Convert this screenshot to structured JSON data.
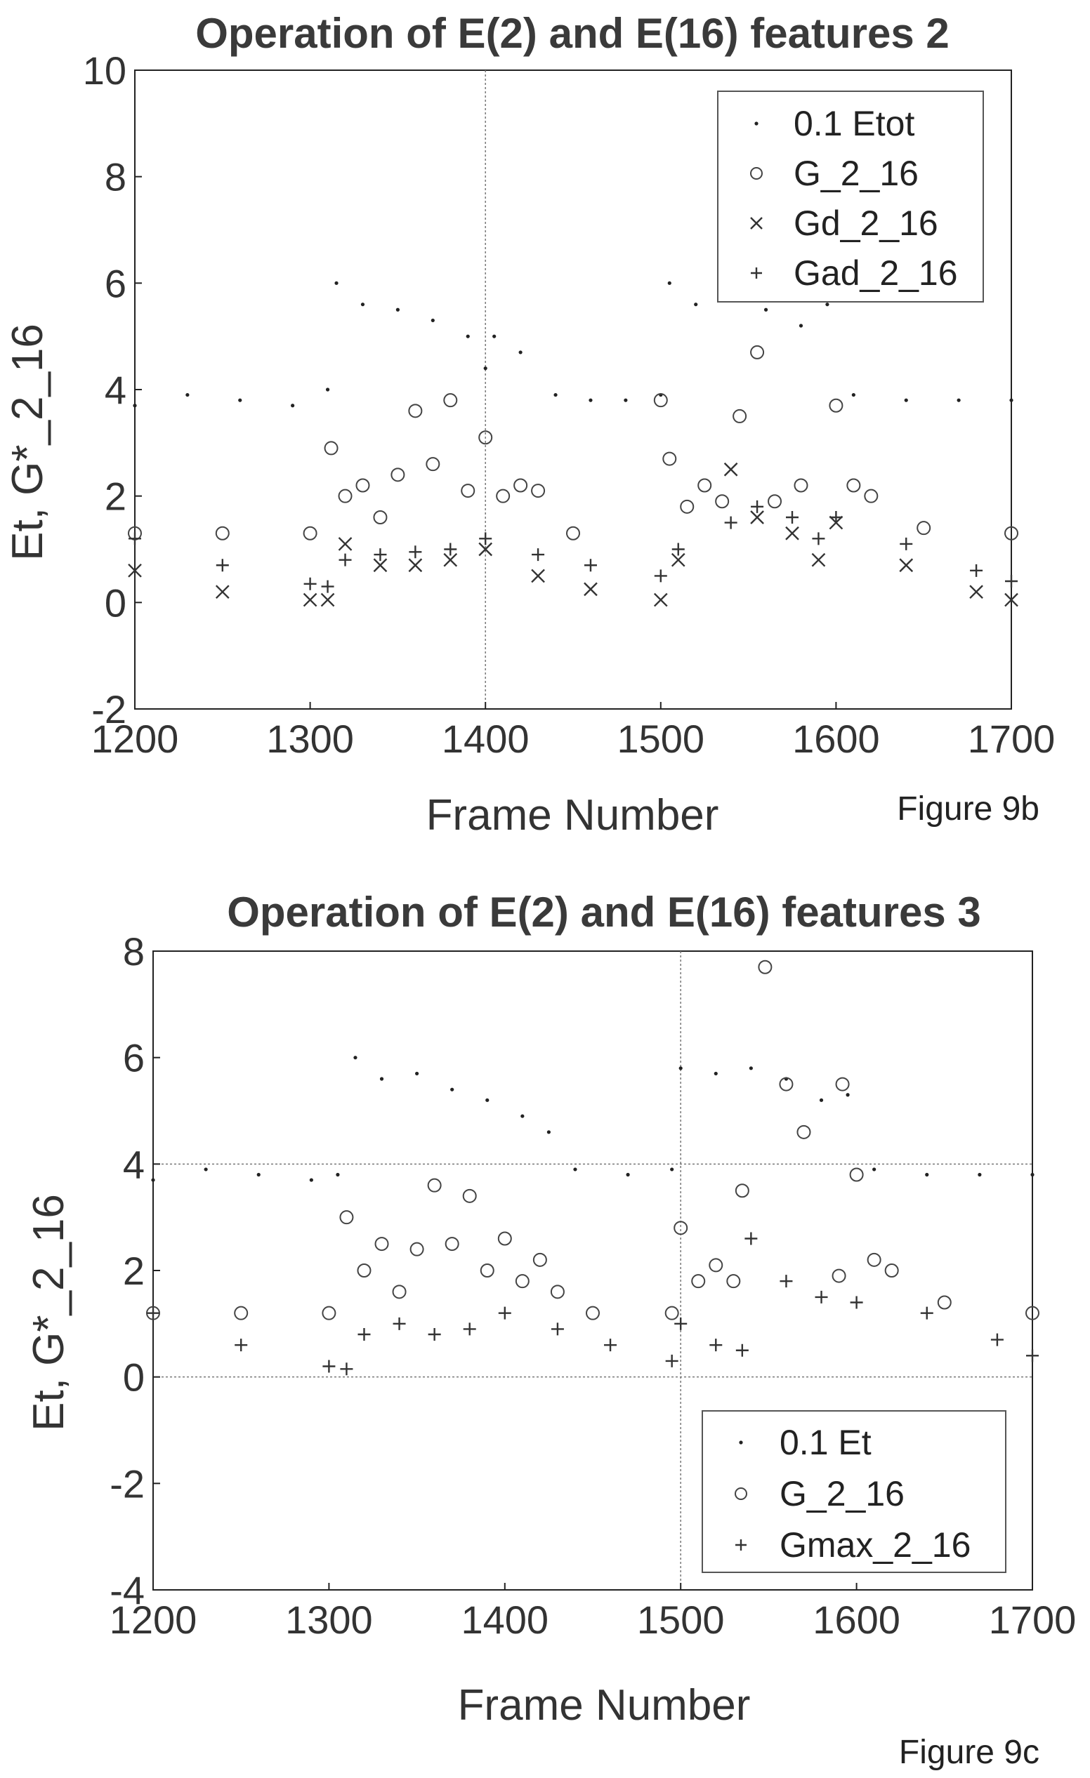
{
  "chart_data": [
    {
      "type": "scatter",
      "title": "Operation of E(2) and E(16) features 2",
      "xlabel": "Frame Number",
      "ylabel": "Et, G*_2_16",
      "caption": "Figure 9b",
      "xlim": [
        1200,
        1700
      ],
      "ylim": [
        -2,
        10
      ],
      "xticks": [
        "1200",
        "1300",
        "1400",
        "1500",
        "1600",
        "1700"
      ],
      "yticks": [
        "-2",
        "0",
        "2",
        "4",
        "6",
        "8",
        "10"
      ],
      "grid": "vertical line at 1400",
      "legend_position": "top-right",
      "legend": [
        "0.1 Etot",
        "G_2_16",
        "Gd_2_16",
        "Gad_2_16"
      ],
      "series": [
        {
          "name": "0.1 Etot",
          "marker": "dot",
          "x": [
            1200,
            1230,
            1260,
            1290,
            1310,
            1315,
            1330,
            1350,
            1370,
            1390,
            1400,
            1405,
            1420,
            1440,
            1460,
            1480,
            1500,
            1505,
            1520,
            1540,
            1560,
            1580,
            1595,
            1610,
            1640,
            1670,
            1700
          ],
          "y": [
            3.7,
            3.9,
            3.8,
            3.7,
            4.0,
            6.0,
            5.6,
            5.5,
            5.3,
            5.0,
            4.4,
            5.0,
            4.7,
            3.9,
            3.8,
            3.8,
            3.9,
            6.0,
            5.6,
            5.8,
            5.5,
            5.2,
            5.6,
            3.9,
            3.8,
            3.8,
            3.8
          ]
        },
        {
          "name": "G_2_16",
          "marker": "circle",
          "x": [
            1200,
            1250,
            1300,
            1312,
            1320,
            1330,
            1340,
            1350,
            1360,
            1370,
            1380,
            1390,
            1400,
            1410,
            1420,
            1430,
            1450,
            1500,
            1505,
            1515,
            1525,
            1535,
            1545,
            1555,
            1565,
            1580,
            1592,
            1600,
            1610,
            1620,
            1650,
            1700
          ],
          "y": [
            1.3,
            1.3,
            1.3,
            2.9,
            2.0,
            2.2,
            1.6,
            2.4,
            3.6,
            2.6,
            3.8,
            2.1,
            3.1,
            2.0,
            2.2,
            2.1,
            1.3,
            3.8,
            2.7,
            1.8,
            2.2,
            1.9,
            3.5,
            4.7,
            1.9,
            2.2,
            5.8,
            3.7,
            2.2,
            2.0,
            1.4,
            1.3
          ]
        },
        {
          "name": "Gd_2_16",
          "marker": "x",
          "x": [
            1200,
            1250,
            1300,
            1310,
            1320,
            1340,
            1360,
            1380,
            1400,
            1430,
            1460,
            1500,
            1510,
            1540,
            1555,
            1575,
            1590,
            1600,
            1640,
            1680,
            1700
          ],
          "y": [
            0.6,
            0.2,
            0.05,
            0.05,
            1.1,
            0.7,
            0.7,
            0.8,
            1.0,
            0.5,
            0.25,
            0.05,
            0.8,
            2.5,
            1.6,
            1.3,
            0.8,
            1.5,
            0.7,
            0.2,
            0.05
          ]
        },
        {
          "name": "Gad_2_16",
          "marker": "plus",
          "x": [
            1200,
            1250,
            1300,
            1310,
            1320,
            1340,
            1360,
            1380,
            1400,
            1430,
            1460,
            1500,
            1510,
            1540,
            1555,
            1575,
            1590,
            1600,
            1640,
            1680,
            1700
          ],
          "y": [
            1.2,
            0.7,
            0.35,
            0.3,
            0.8,
            0.9,
            0.95,
            1.0,
            1.2,
            0.9,
            0.7,
            0.5,
            1.0,
            1.5,
            1.8,
            1.6,
            1.2,
            1.6,
            1.1,
            0.6,
            0.4
          ]
        }
      ]
    },
    {
      "type": "scatter",
      "title": "Operation of E(2) and E(16) features 3",
      "xlabel": "Frame Number",
      "ylabel": "Et, G*_2_16",
      "caption": "Figure 9c",
      "xlim": [
        1200,
        1700
      ],
      "ylim": [
        -4,
        8
      ],
      "xticks": [
        "1200",
        "1300",
        "1400",
        "1500",
        "1600",
        "1700"
      ],
      "yticks": [
        "-4",
        "-2",
        "0",
        "2",
        "4",
        "6",
        "8"
      ],
      "grid": "lines at x=1500, y=0, y=4",
      "legend_position": "bottom-right",
      "legend": [
        "0.1 Et",
        "G_2_16",
        "Gmax_2_16"
      ],
      "series": [
        {
          "name": "0.1 Et",
          "marker": "dot",
          "x": [
            1200,
            1230,
            1260,
            1290,
            1305,
            1315,
            1330,
            1350,
            1370,
            1390,
            1410,
            1425,
            1440,
            1470,
            1495,
            1500,
            1520,
            1540,
            1560,
            1580,
            1595,
            1610,
            1640,
            1670,
            1700
          ],
          "y": [
            3.7,
            3.9,
            3.8,
            3.7,
            3.8,
            6.0,
            5.6,
            5.7,
            5.4,
            5.2,
            4.9,
            4.6,
            3.9,
            3.8,
            3.9,
            5.8,
            5.7,
            5.8,
            5.6,
            5.2,
            5.3,
            3.9,
            3.8,
            3.8,
            3.8
          ]
        },
        {
          "name": "G_2_16",
          "marker": "circle",
          "x": [
            1200,
            1250,
            1300,
            1310,
            1320,
            1330,
            1340,
            1350,
            1360,
            1370,
            1380,
            1390,
            1400,
            1410,
            1420,
            1430,
            1450,
            1495,
            1500,
            1510,
            1520,
            1530,
            1535,
            1548,
            1560,
            1570,
            1590,
            1592,
            1600,
            1610,
            1620,
            1650,
            1700
          ],
          "y": [
            1.2,
            1.2,
            1.2,
            3.0,
            2.0,
            2.5,
            1.6,
            2.4,
            3.6,
            2.5,
            3.4,
            2.0,
            2.6,
            1.8,
            2.2,
            1.6,
            1.2,
            1.2,
            2.8,
            1.8,
            2.1,
            1.8,
            3.5,
            7.7,
            5.5,
            4.6,
            1.9,
            5.5,
            3.8,
            2.2,
            2.0,
            1.4,
            1.2
          ]
        },
        {
          "name": "Gmax_2_16",
          "marker": "plus",
          "x": [
            1200,
            1250,
            1300,
            1310,
            1320,
            1340,
            1360,
            1380,
            1400,
            1430,
            1460,
            1495,
            1500,
            1520,
            1535,
            1540,
            1560,
            1580,
            1600,
            1640,
            1680,
            1700
          ],
          "y": [
            1.2,
            0.6,
            0.2,
            0.15,
            0.8,
            1.0,
            0.8,
            0.9,
            1.2,
            0.9,
            0.6,
            0.3,
            1.0,
            0.6,
            0.5,
            2.6,
            1.8,
            1.5,
            1.4,
            1.2,
            0.7,
            0.4
          ]
        }
      ]
    }
  ]
}
